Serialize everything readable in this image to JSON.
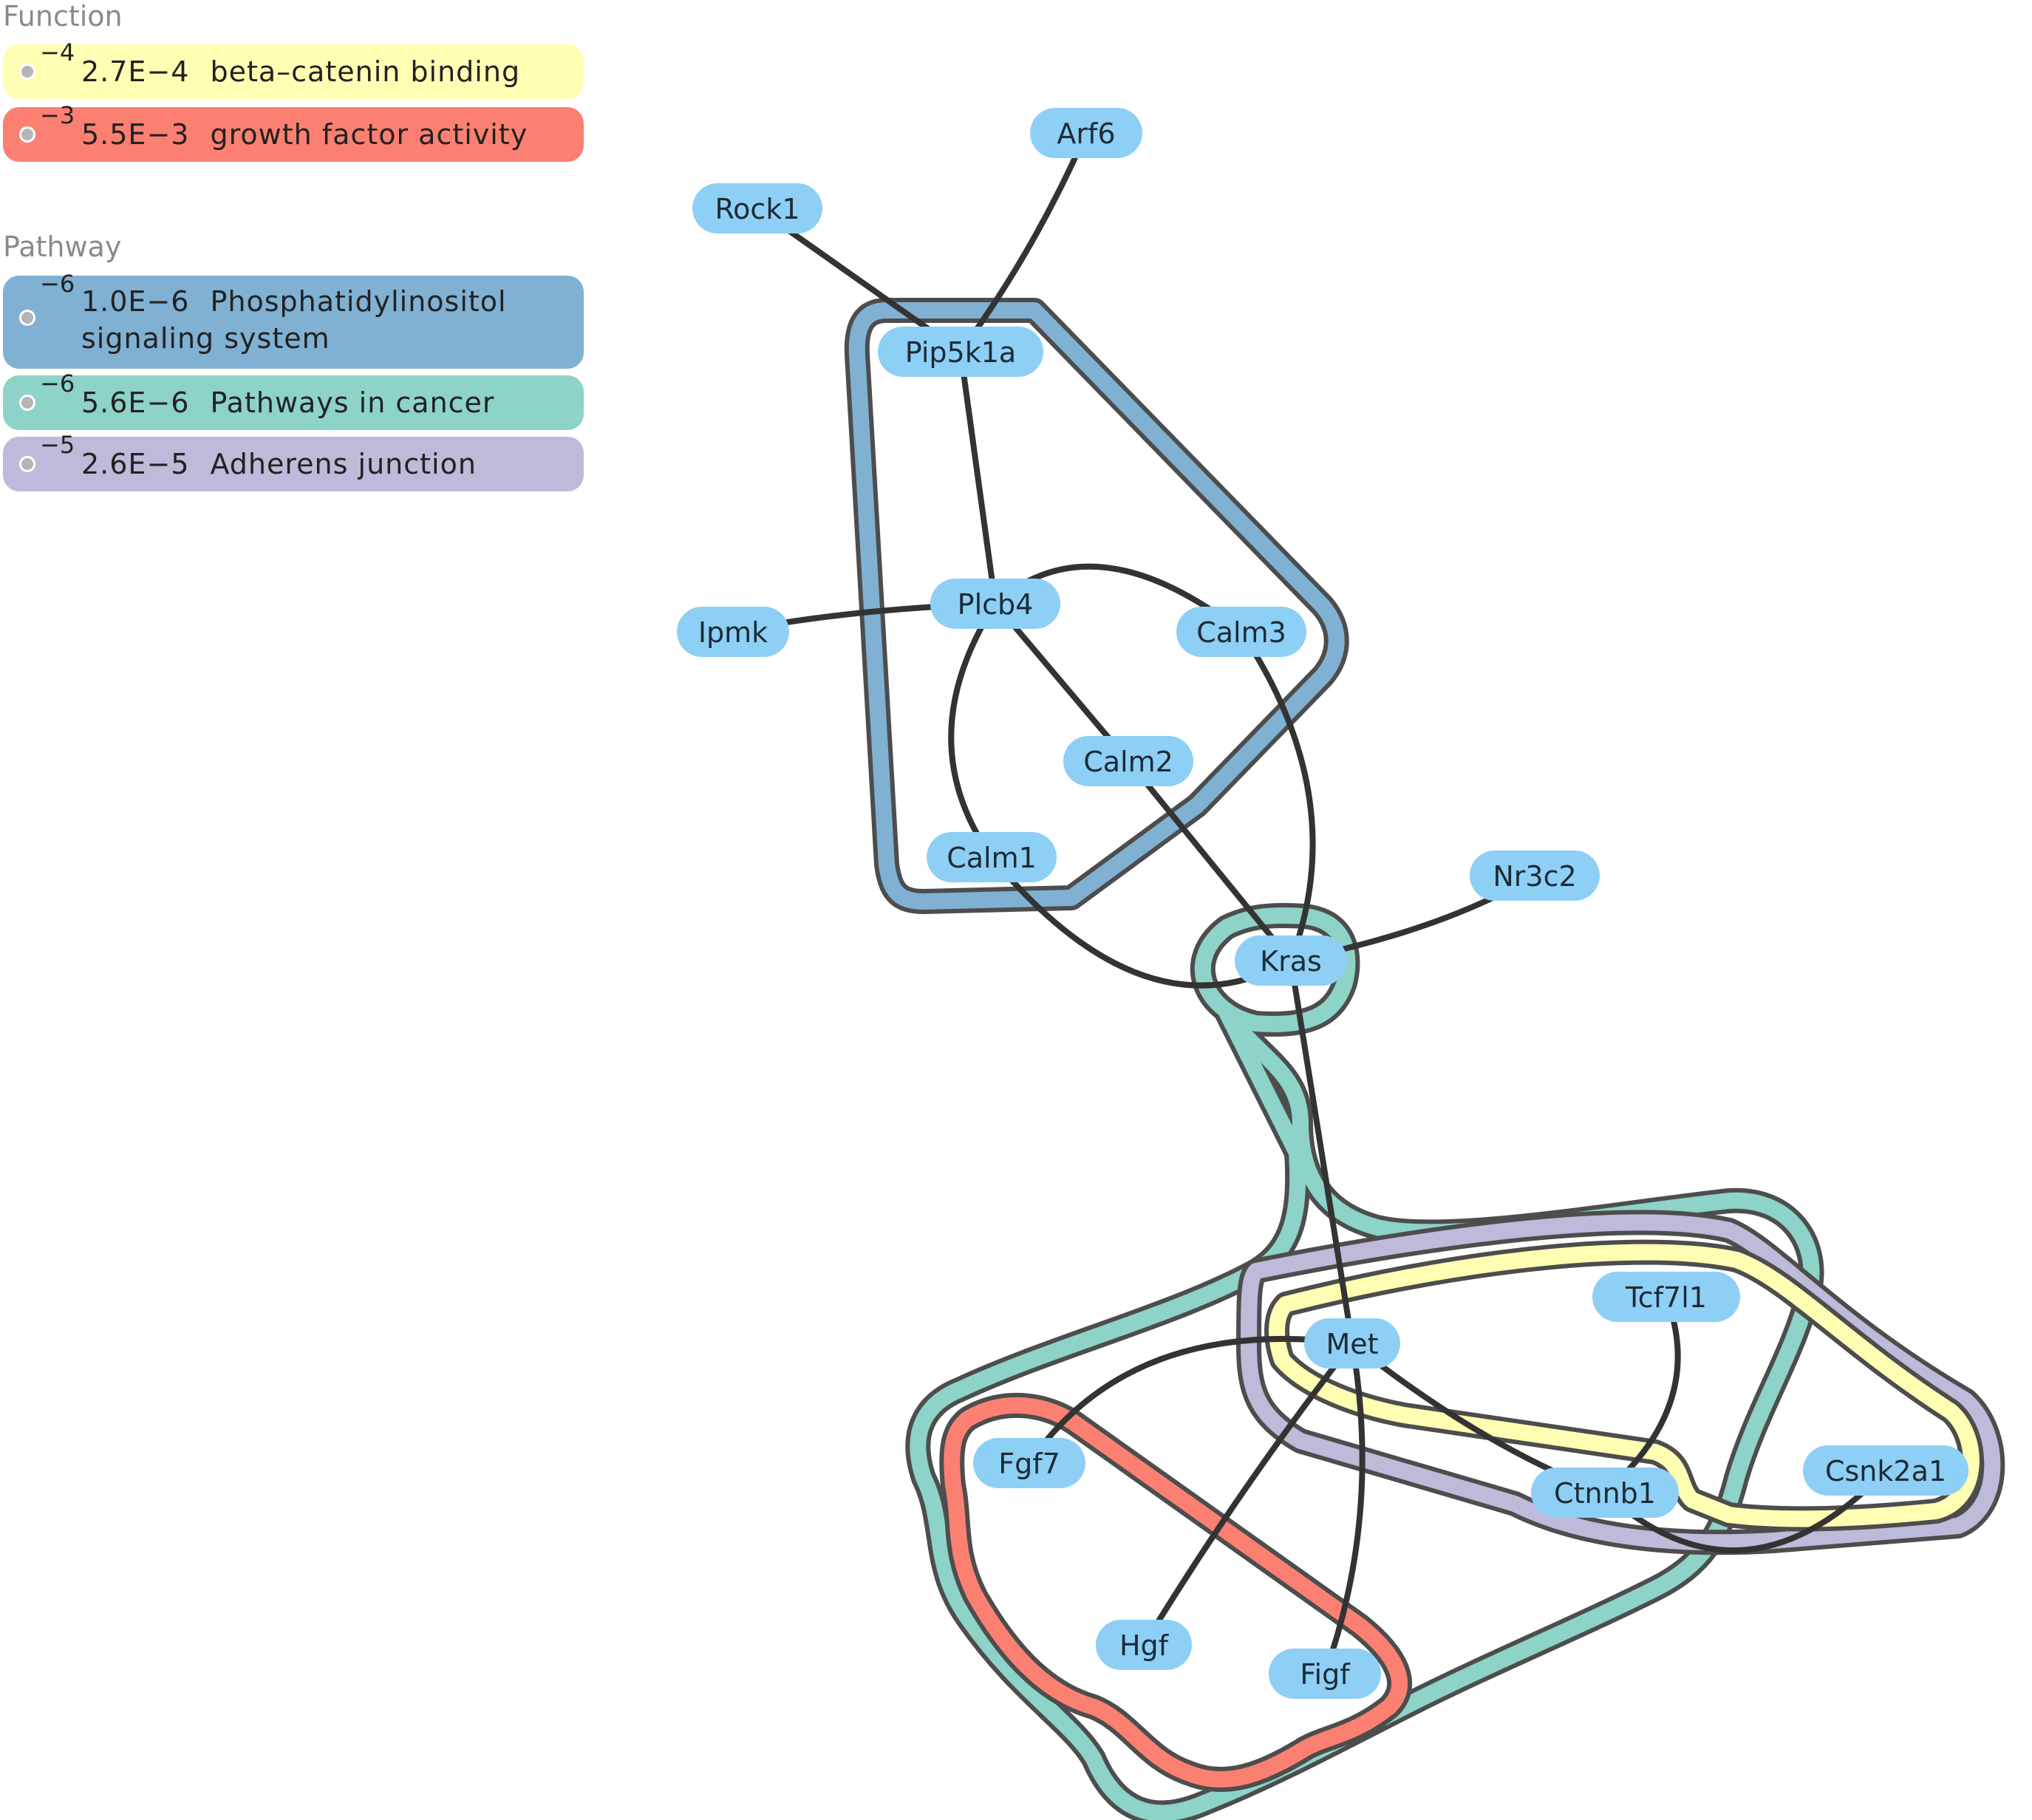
{
  "legend": {
    "function_title": "Function",
    "pathway_title": "Pathway",
    "function_items": [
      {
        "exponent": "−4",
        "pvalue": "2.7E−4",
        "label": "beta–catenin binding",
        "color": "#ffffb3"
      },
      {
        "exponent": "−3",
        "pvalue": "5.5E−3",
        "label": "growth factor activity",
        "color": "#fb8072"
      }
    ],
    "pathway_items": [
      {
        "exponent": "−6",
        "pvalue": "1.0E−6",
        "label": "Phosphatidylinositol signaling system",
        "color": "#80b1d3"
      },
      {
        "exponent": "−6",
        "pvalue": "5.6E−6",
        "label": "Pathways in cancer",
        "color": "#8dd3c7"
      },
      {
        "exponent": "−5",
        "pvalue": "2.6E−5",
        "label": "Adherens junction",
        "color": "#bebada"
      }
    ]
  },
  "network": {
    "node_color": "#8ecff5",
    "edge_color": "#333333",
    "nodes": [
      {
        "id": "Arf6",
        "label": "Arf6"
      },
      {
        "id": "Rock1",
        "label": "Rock1"
      },
      {
        "id": "Pip5k1a",
        "label": "Pip5k1a"
      },
      {
        "id": "Plcb4",
        "label": "Plcb4"
      },
      {
        "id": "Ipmk",
        "label": "Ipmk"
      },
      {
        "id": "Calm3",
        "label": "Calm3"
      },
      {
        "id": "Calm2",
        "label": "Calm2"
      },
      {
        "id": "Calm1",
        "label": "Calm1"
      },
      {
        "id": "Nr3c2",
        "label": "Nr3c2"
      },
      {
        "id": "Kras",
        "label": "Kras"
      },
      {
        "id": "Tcf7l1",
        "label": "Tcf7l1"
      },
      {
        "id": "Met",
        "label": "Met"
      },
      {
        "id": "Fgf7",
        "label": "Fgf7"
      },
      {
        "id": "Csnk2a1",
        "label": "Csnk2a1"
      },
      {
        "id": "Ctnnb1",
        "label": "Ctnnb1"
      },
      {
        "id": "Hgf",
        "label": "Hgf"
      },
      {
        "id": "Figf",
        "label": "Figf"
      }
    ],
    "edges": [
      [
        "Rock1",
        "Pip5k1a"
      ],
      [
        "Arf6",
        "Pip5k1a"
      ],
      [
        "Pip5k1a",
        "Plcb4"
      ],
      [
        "Ipmk",
        "Plcb4"
      ],
      [
        "Plcb4",
        "Calm2"
      ],
      [
        "Plcb4",
        "Calm3"
      ],
      [
        "Plcb4",
        "Calm1"
      ],
      [
        "Calm2",
        "Kras"
      ],
      [
        "Calm3",
        "Kras"
      ],
      [
        "Calm1",
        "Kras"
      ],
      [
        "Kras",
        "Nr3c2"
      ],
      [
        "Kras",
        "Met"
      ],
      [
        "Met",
        "Fgf7"
      ],
      [
        "Met",
        "Hgf"
      ],
      [
        "Met",
        "Figf"
      ],
      [
        "Met",
        "Ctnnb1"
      ],
      [
        "Tcf7l1",
        "Ctnnb1"
      ],
      [
        "Ctnnb1",
        "Csnk2a1"
      ]
    ]
  }
}
